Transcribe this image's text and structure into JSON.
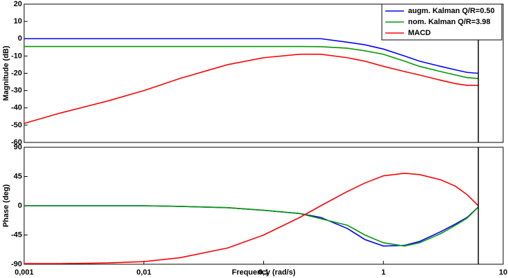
{
  "chart_data": [
    {
      "type": "line",
      "ylabel": "Magnitude (dB)",
      "log_x": true,
      "x": [
        0.001,
        0.002,
        0.005,
        0.01,
        0.02,
        0.05,
        0.1,
        0.2,
        0.3,
        0.5,
        0.7,
        1,
        1.5,
        2,
        3,
        4,
        5,
        6.2
      ],
      "xlim": [
        0.001,
        10
      ],
      "ylim": [
        -60,
        20
      ],
      "yticks": [
        -60,
        -50,
        -40,
        -30,
        -20,
        -10,
        0,
        10,
        20
      ],
      "vline": 6.2,
      "legend": "upper-right",
      "series": [
        {
          "name": "augm. Kalman Q/R=0.50",
          "color": "#0000ff",
          "values": [
            0,
            0,
            0,
            0,
            0,
            0,
            0,
            0,
            0,
            -2,
            -3.5,
            -6,
            -10,
            -13,
            -16,
            -18,
            -19.5,
            -20
          ]
        },
        {
          "name": "nom. Kalman Q/R=3.98",
          "color": "#009900",
          "values": [
            -4.5,
            -4.5,
            -4.5,
            -4.5,
            -4.5,
            -4.5,
            -4.5,
            -4.5,
            -4.6,
            -5.5,
            -7,
            -9,
            -13,
            -16,
            -19,
            -21,
            -22.5,
            -23
          ]
        },
        {
          "name": "MACD",
          "color": "#ff0000",
          "values": [
            -49,
            -43,
            -36,
            -30,
            -23,
            -15,
            -11,
            -9,
            -9,
            -11,
            -13,
            -16,
            -19,
            -21,
            -24,
            -26,
            -27,
            -27
          ]
        }
      ]
    },
    {
      "type": "line",
      "ylabel": "Phase (deg)",
      "xlabel": "Frequency  (rad/s)",
      "log_x": true,
      "x": [
        0.001,
        0.002,
        0.005,
        0.01,
        0.02,
        0.05,
        0.1,
        0.2,
        0.3,
        0.5,
        0.7,
        1,
        1.5,
        2,
        3,
        4,
        5,
        6.2
      ],
      "xlim": [
        0.001,
        10
      ],
      "xticks": [
        {
          "value": 0.001,
          "label": "0,001"
        },
        {
          "value": 0.01,
          "label": "0,01"
        },
        {
          "value": 0.1,
          "label": "0,1"
        },
        1,
        10
      ],
      "ylim": [
        -90,
        90
      ],
      "yticks": [
        -90,
        -45,
        0,
        45,
        90
      ],
      "vline": 6.2,
      "series": [
        {
          "color": "#0000ff",
          "values": [
            0,
            0,
            0,
            0,
            -1,
            -3,
            -7,
            -12,
            -18,
            -35,
            -52,
            -62,
            -61,
            -55,
            -40,
            -28,
            -18,
            -2
          ]
        },
        {
          "color": "#009900",
          "values": [
            0,
            0,
            0,
            0,
            -1,
            -3,
            -7,
            -12,
            -20,
            -30,
            -45,
            -57,
            -62,
            -57,
            -43,
            -30,
            -19,
            -2
          ]
        },
        {
          "color": "#ff0000",
          "values": [
            -89,
            -89,
            -88,
            -86,
            -80,
            -65,
            -45,
            -18,
            0,
            22,
            35,
            46,
            50,
            48,
            40,
            30,
            17,
            0
          ]
        }
      ]
    }
  ]
}
